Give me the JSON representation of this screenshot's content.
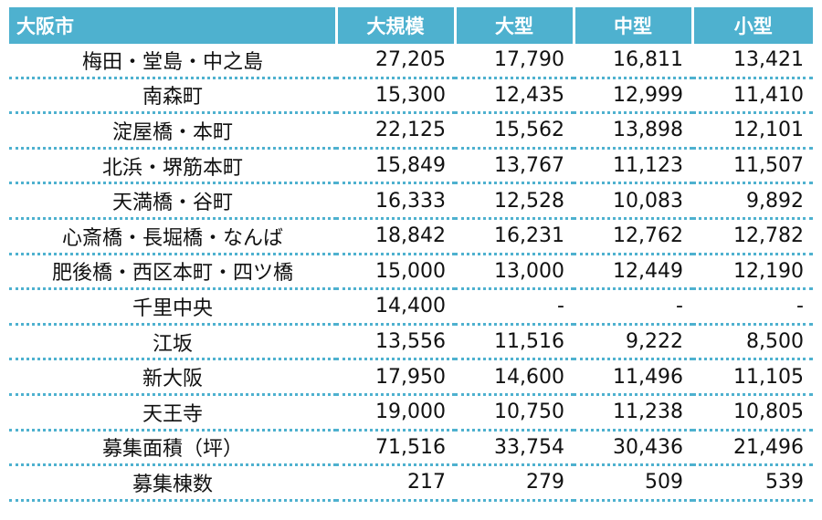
{
  "table": {
    "header": [
      "大阪市",
      "大規模",
      "大型",
      "中型",
      "小型"
    ],
    "rows": [
      [
        "梅田・堂島・中之島",
        "27,205",
        "17,790",
        "16,811",
        "13,421"
      ],
      [
        "南森町",
        "15,300",
        "12,435",
        "12,999",
        "11,410"
      ],
      [
        "淀屋橋・本町",
        "22,125",
        "15,562",
        "13,898",
        "12,101"
      ],
      [
        "北浜・堺筋本町",
        "15,849",
        "13,767",
        "11,123",
        "11,507"
      ],
      [
        "天満橋・谷町",
        "16,333",
        "12,528",
        "10,083",
        "9,892"
      ],
      [
        "心斎橋・長堀橋・なんば",
        "18,842",
        "16,231",
        "12,762",
        "12,782"
      ],
      [
        "肥後橋・西区本町・四ツ橋",
        "15,000",
        "13,000",
        "12,449",
        "12,190"
      ],
      [
        "千里中央",
        "14,400",
        "-",
        "-",
        "-"
      ],
      [
        "江坂",
        "13,556",
        "11,516",
        "9,222",
        "8,500"
      ],
      [
        "新大阪",
        "17,950",
        "14,600",
        "11,496",
        "11,105"
      ],
      [
        "天王寺",
        "19,000",
        "10,750",
        "11,238",
        "10,805"
      ],
      [
        "募集面積（坪）",
        "71,516",
        "33,754",
        "30,436",
        "21,496"
      ],
      [
        "募集棟数",
        "217",
        "279",
        "509",
        "539"
      ]
    ]
  }
}
